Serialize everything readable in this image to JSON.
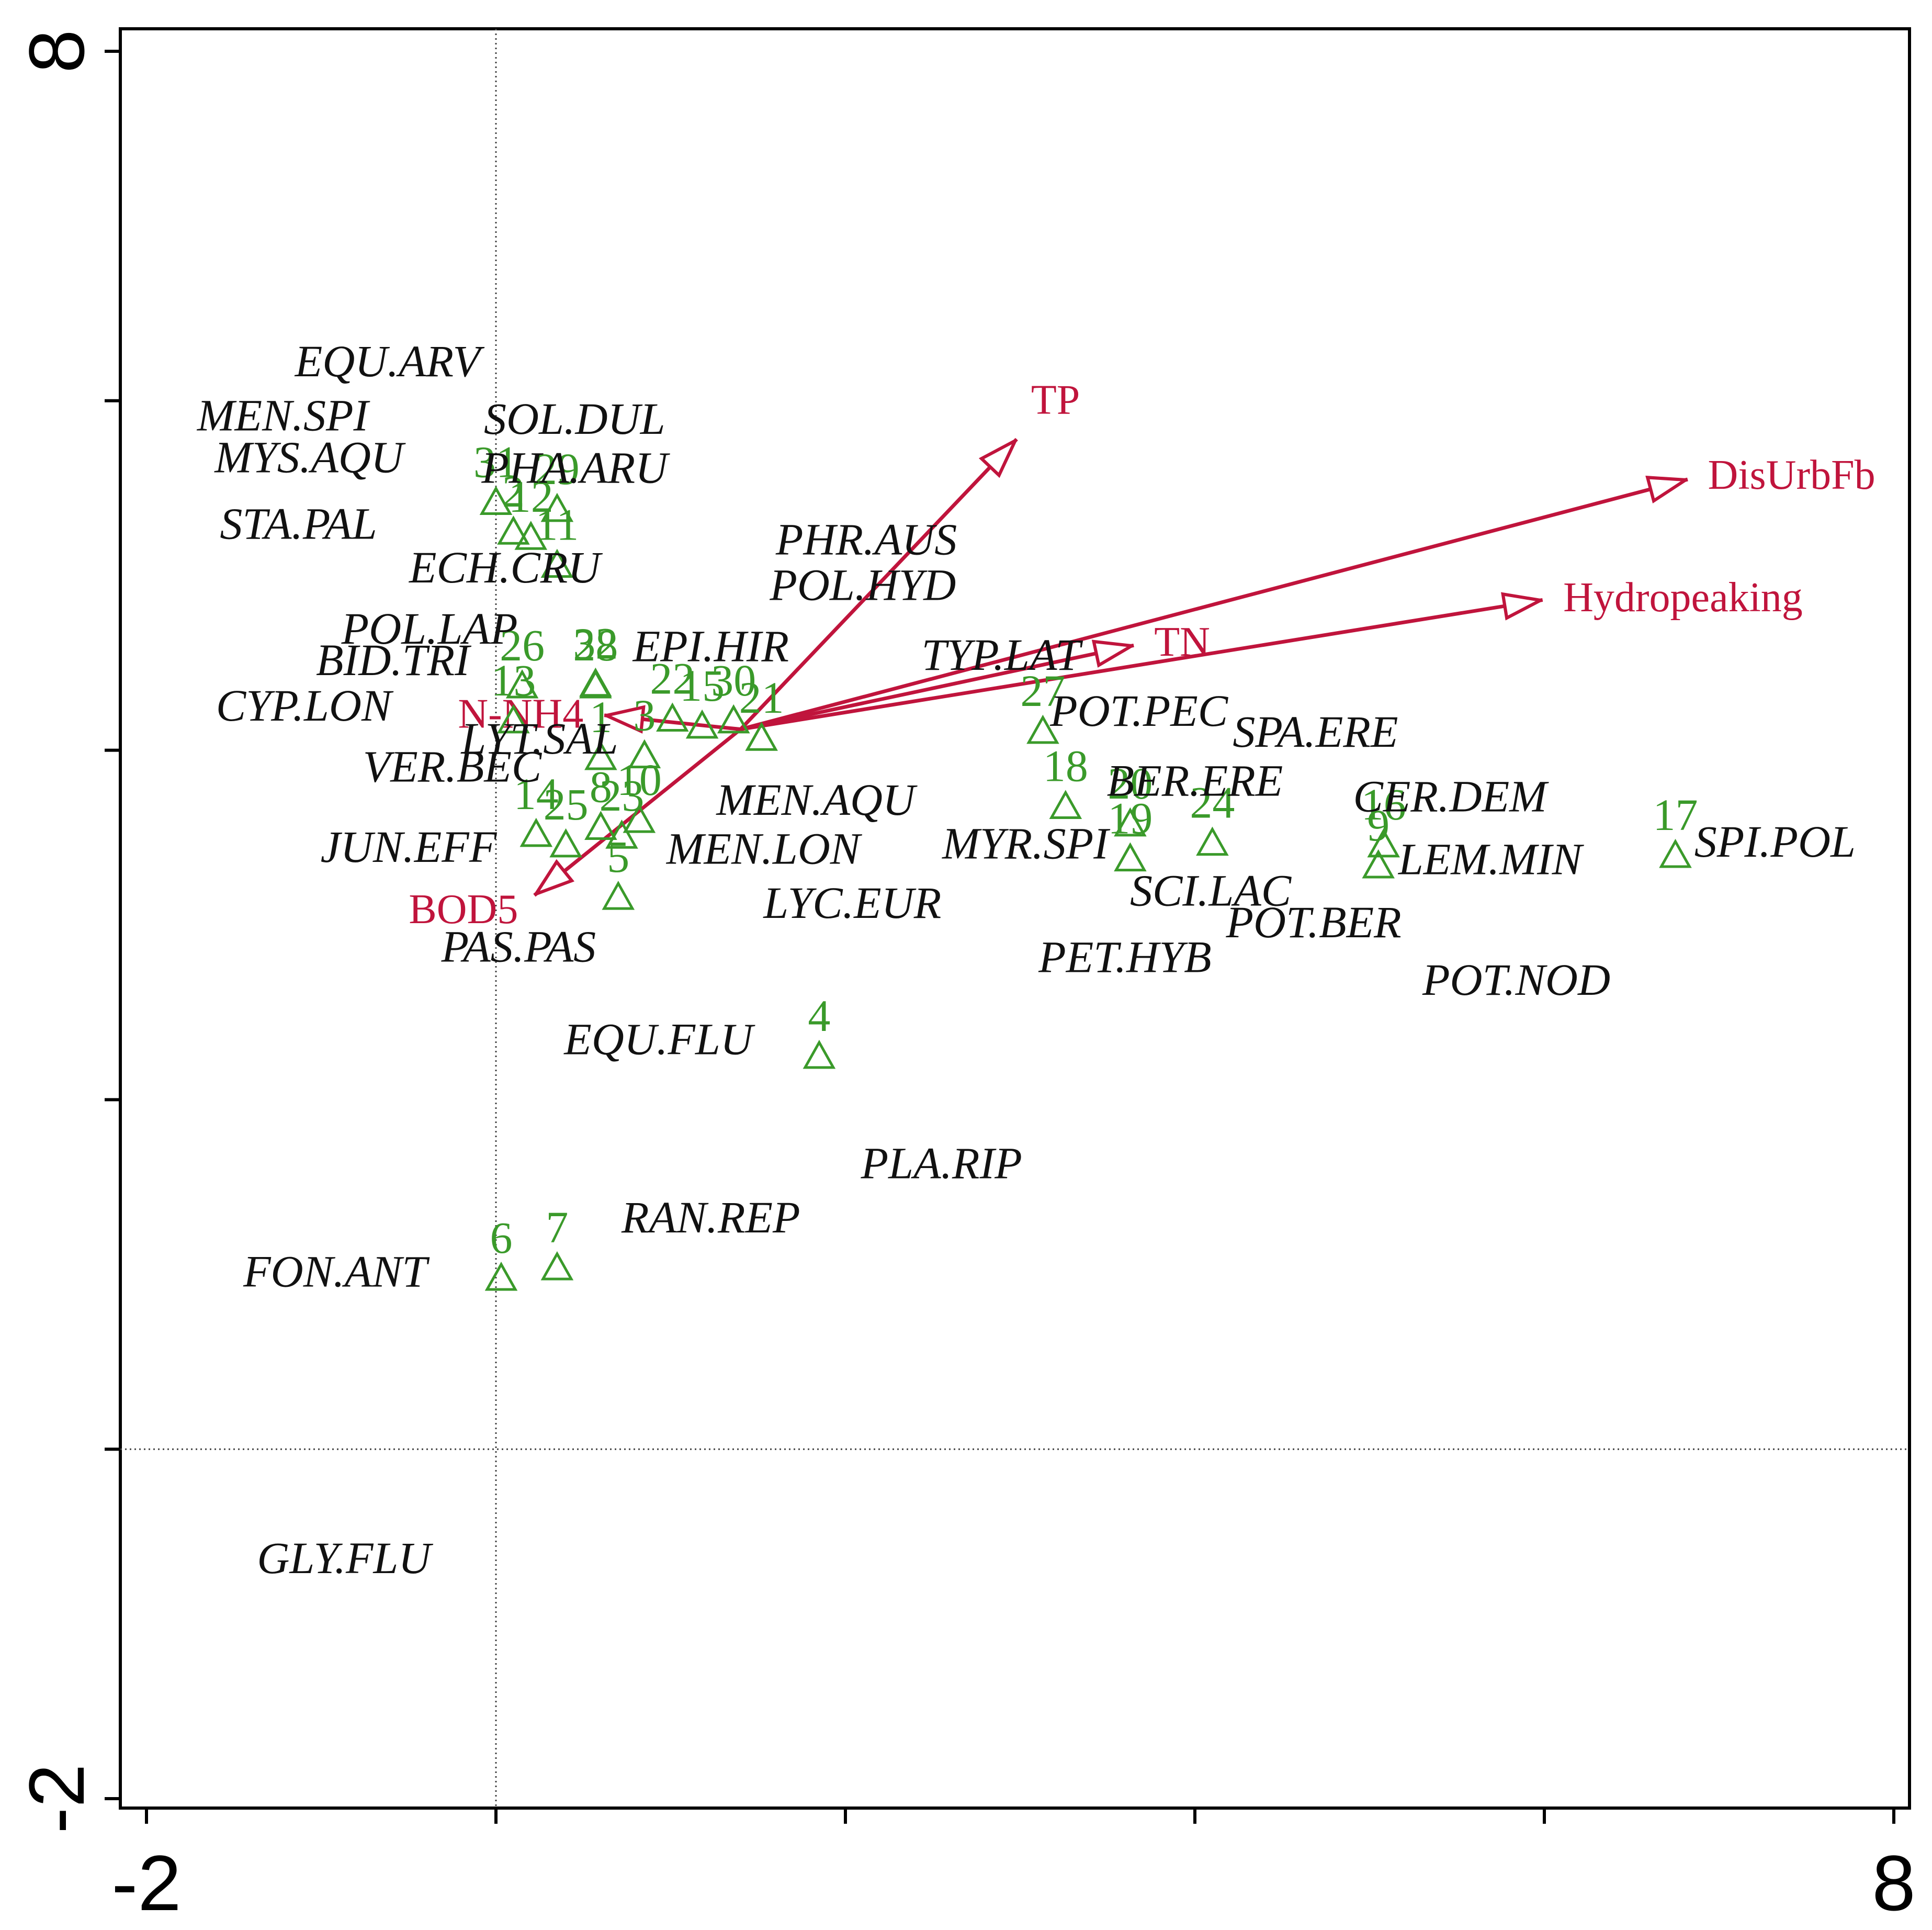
{
  "chart_data": {
    "type": "scatter",
    "title": "",
    "xlabel": "",
    "ylabel": "",
    "xlim": [
      -2.0,
      8.0
    ],
    "ylim": [
      -2.0,
      8.0
    ],
    "x_tick_labels": [
      "-2",
      "8"
    ],
    "y_tick_labels": [
      "-2",
      "8"
    ],
    "reference_lines": {
      "x": 0,
      "y": 0
    },
    "colors": {
      "species": "#111111",
      "sites": "#3a9a2a",
      "environment": "#c0143c"
    },
    "species": [
      {
        "label": "EQU.ARV",
        "x": -0.62,
        "y": 6.23
      },
      {
        "label": "MEN.SPI",
        "x": -1.22,
        "y": 5.92
      },
      {
        "label": "SOL.DUL",
        "x": 0.45,
        "y": 5.9
      },
      {
        "label": "MYS.AQU",
        "x": -1.07,
        "y": 5.68
      },
      {
        "label": "PHA.ARU",
        "x": 0.45,
        "y": 5.62
      },
      {
        "label": "STA.PAL",
        "x": -1.13,
        "y": 5.3
      },
      {
        "label": "PHR.AUS",
        "x": 2.12,
        "y": 5.21
      },
      {
        "label": "ECH.CRU",
        "x": 0.05,
        "y": 5.05
      },
      {
        "label": "POL.HYD",
        "x": 2.1,
        "y": 4.95
      },
      {
        "label": "POL.LAP",
        "x": -0.38,
        "y": 4.7
      },
      {
        "label": "EPI.HIR",
        "x": 1.23,
        "y": 4.6
      },
      {
        "label": "TYP.LAT",
        "x": 2.89,
        "y": 4.55
      },
      {
        "label": "BID.TRI",
        "x": -0.59,
        "y": 4.52
      },
      {
        "label": "SPA.ERE",
        "x": 4.69,
        "y": 4.11
      },
      {
        "label": "CYP.LON",
        "x": -1.1,
        "y": 4.26
      },
      {
        "label": "POT.PEC",
        "x": 3.68,
        "y": 4.23
      },
      {
        "label": "LYT.SAL",
        "x": 0.25,
        "y": 4.07
      },
      {
        "label": "BER.ERE",
        "x": 4.0,
        "y": 3.83
      },
      {
        "label": "VER.BEC",
        "x": -0.25,
        "y": 3.91
      },
      {
        "label": "MEN.AQU",
        "x": 1.83,
        "y": 3.72
      },
      {
        "label": "CER.DEM",
        "x": 5.46,
        "y": 3.74
      },
      {
        "label": "JUN.EFF",
        "x": -0.5,
        "y": 3.45
      },
      {
        "label": "MEN.LON",
        "x": 1.53,
        "y": 3.44
      },
      {
        "label": "MYR.SPI",
        "x": 3.03,
        "y": 3.47
      },
      {
        "label": "LEM.MIN",
        "x": 5.69,
        "y": 3.38
      },
      {
        "label": "SPI.POL",
        "x": 7.32,
        "y": 3.48
      },
      {
        "label": "SCI.LAC",
        "x": 4.09,
        "y": 3.2
      },
      {
        "label": "LYC.EUR",
        "x": 2.04,
        "y": 3.13
      },
      {
        "label": "POT.BER",
        "x": 4.68,
        "y": 3.02
      },
      {
        "label": "PAS.PAS",
        "x": 0.13,
        "y": 2.88
      },
      {
        "label": "PET.HYB",
        "x": 3.6,
        "y": 2.82
      },
      {
        "label": "POT.NOD",
        "x": 5.84,
        "y": 2.69
      },
      {
        "label": "EQU.FLU",
        "x": 0.93,
        "y": 2.35
      },
      {
        "label": "PLA.RIP",
        "x": 2.55,
        "y": 1.64
      },
      {
        "label": "RAN.REP",
        "x": 1.23,
        "y": 1.33
      },
      {
        "label": "FON.ANT",
        "x": -0.92,
        "y": 1.02
      },
      {
        "label": "GLY.FLU",
        "x": -0.87,
        "y": -0.62
      }
    ],
    "sites": [
      {
        "label": "1",
        "x": 0.6,
        "y": 3.96
      },
      {
        "label": "2",
        "x": 0.1,
        "y": 5.25
      },
      {
        "label": "3",
        "x": 0.85,
        "y": 3.97
      },
      {
        "label": "4",
        "x": 1.85,
        "y": 2.25
      },
      {
        "label": "5",
        "x": 0.7,
        "y": 3.16
      },
      {
        "label": "6",
        "x": 0.03,
        "y": 0.98
      },
      {
        "label": "7",
        "x": 0.35,
        "y": 1.04
      },
      {
        "label": "8",
        "x": 0.6,
        "y": 3.56
      },
      {
        "label": "9",
        "x": 5.05,
        "y": 3.34
      },
      {
        "label": "10",
        "x": 0.82,
        "y": 3.6
      },
      {
        "label": "11",
        "x": 0.35,
        "y": 5.06
      },
      {
        "label": "12",
        "x": 0.2,
        "y": 5.22
      },
      {
        "label": "13",
        "x": 0.1,
        "y": 4.17
      },
      {
        "label": "14",
        "x": 0.23,
        "y": 3.52
      },
      {
        "label": "15",
        "x": 1.18,
        "y": 4.14
      },
      {
        "label": "16",
        "x": 5.08,
        "y": 3.46
      },
      {
        "label": "17",
        "x": 6.75,
        "y": 3.4
      },
      {
        "label": "18",
        "x": 3.26,
        "y": 3.68
      },
      {
        "label": "19",
        "x": 3.63,
        "y": 3.38
      },
      {
        "label": "20",
        "x": 3.63,
        "y": 3.58
      },
      {
        "label": "21",
        "x": 1.52,
        "y": 4.07
      },
      {
        "label": "22",
        "x": 1.01,
        "y": 4.18
      },
      {
        "label": "23",
        "x": 0.72,
        "y": 3.51
      },
      {
        "label": "24",
        "x": 4.1,
        "y": 3.47
      },
      {
        "label": "25",
        "x": 0.4,
        "y": 3.46
      },
      {
        "label": "26",
        "x": 0.15,
        "y": 4.37
      },
      {
        "label": "27",
        "x": 3.13,
        "y": 4.11
      },
      {
        "label": "28",
        "x": 0.57,
        "y": 4.37
      },
      {
        "label": "29",
        "x": 0.35,
        "y": 5.38
      },
      {
        "label": "30",
        "x": 1.36,
        "y": 4.17
      },
      {
        "label": "31",
        "x": 0.0,
        "y": 5.42
      },
      {
        "label": "32",
        "x": 0.57,
        "y": 4.38
      }
    ],
    "environment": [
      {
        "label": "TP",
        "x": 2.98,
        "y": 5.78
      },
      {
        "label": "DisUrbFb",
        "x": 6.82,
        "y": 5.55
      },
      {
        "label": "Hydropeaking",
        "x": 5.99,
        "y": 4.86
      },
      {
        "label": "TN",
        "x": 3.65,
        "y": 4.6
      },
      {
        "label": "N-NH4",
        "x": 0.62,
        "y": 4.2
      },
      {
        "label": "BOD5",
        "x": 0.22,
        "y": 3.17
      }
    ],
    "arrow_origin": {
      "x": 1.4,
      "y": 4.12
    }
  }
}
